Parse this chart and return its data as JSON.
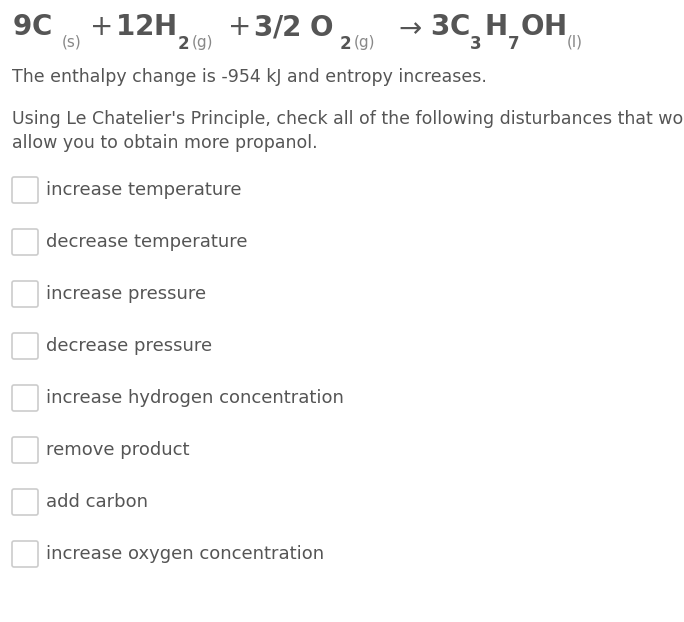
{
  "background_color": "#ffffff",
  "text_color": "#555555",
  "subtext_color": "#888888",
  "enthalpy_text": "The enthalpy change is -954 kJ and entropy increases.",
  "instruction_text": "Using Le Chatelier's Principle, check all of the following disturbances that would\nallow you to obtain more propanol.",
  "options": [
    "increase temperature",
    "decrease temperature",
    "increase pressure",
    "decrease pressure",
    "increase hydrogen concentration",
    "remove product",
    "add carbon",
    "increase oxygen concentration"
  ],
  "checkbox_color": "#cccccc",
  "checkbox_linewidth": 1.2,
  "fig_width": 6.84,
  "fig_height": 6.22,
  "dpi": 100
}
